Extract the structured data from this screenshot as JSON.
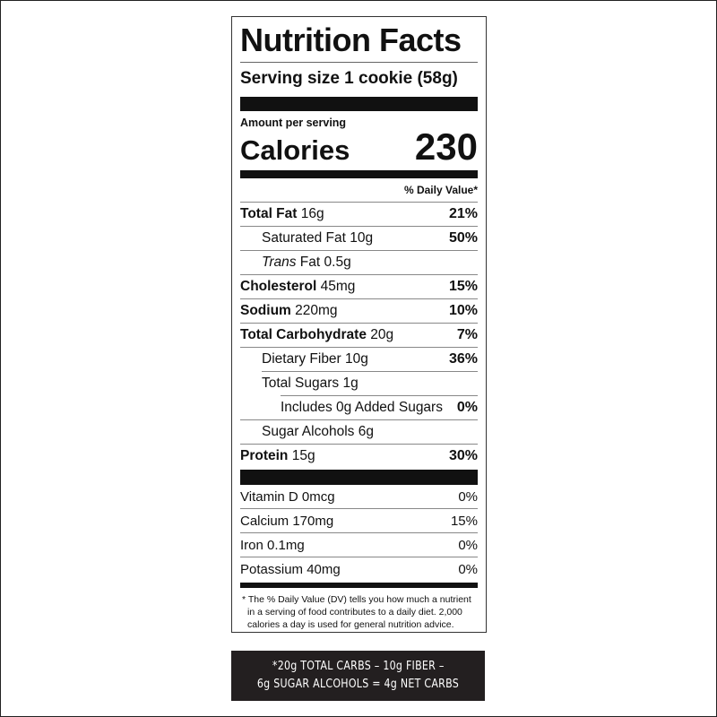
{
  "title": "Nutrition Facts",
  "serving_size": "Serving size 1 cookie (58g)",
  "amount_per_serving": "Amount per serving",
  "calories_label": "Calories",
  "calories_value": "230",
  "daily_value_header": "% Daily Value*",
  "nutrients": [
    {
      "name": "Total Fat",
      "amount": "16g",
      "dv": "21%"
    },
    {
      "name": "Saturated Fat",
      "amount": "10g",
      "dv": "50%"
    },
    {
      "name": "Trans",
      "name_suffix": "Fat",
      "amount": "0.5g",
      "dv": ""
    },
    {
      "name": "Cholesterol",
      "amount": "45mg",
      "dv": "15%"
    },
    {
      "name": "Sodium",
      "amount": "220mg",
      "dv": "10%"
    },
    {
      "name": "Total Carbohydrate",
      "amount": "20g",
      "dv": "7%"
    },
    {
      "name": "Dietary Fiber",
      "amount": "10g",
      "dv": "36%"
    },
    {
      "name": "Total Sugars",
      "amount": "1g",
      "dv": ""
    },
    {
      "name": "Includes 0g Added Sugars",
      "amount": "",
      "dv": "0%"
    },
    {
      "name": "Sugar Alcohols",
      "amount": "6g",
      "dv": ""
    },
    {
      "name": "Protein",
      "amount": "15g",
      "dv": "30%"
    }
  ],
  "vitamins": [
    {
      "name": "Vitamin D 0mcg",
      "dv": "0%"
    },
    {
      "name": "Calcium 170mg",
      "dv": "15%"
    },
    {
      "name": "Iron 0.1mg",
      "dv": "0%"
    },
    {
      "name": "Potassium 40mg",
      "dv": "0%"
    }
  ],
  "footnote": "* The % Daily Value (DV) tells you how much a nutrient in a serving of food contributes to a daily diet. 2,000 calories a day is used for general nutrition advice.",
  "net_carbs": {
    "line1": "*20g TOTAL CARBS – 10g FIBER –",
    "line2": "6g SUGAR ALCOHOLS = 4g NET CARBS"
  }
}
